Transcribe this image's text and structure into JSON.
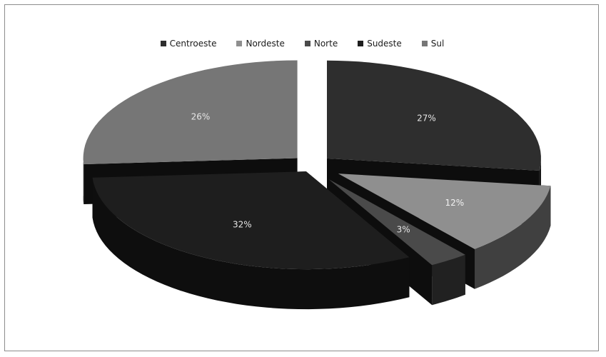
{
  "chart_data": {
    "type": "pie",
    "style": "3d-exploded",
    "legend_position": "top",
    "categories": [
      "Centroeste",
      "Nordeste",
      "Norte",
      "Sudeste",
      "Sul"
    ],
    "values": [
      27,
      12,
      3,
      32,
      26
    ],
    "labels": [
      "27%",
      "12%",
      "3%",
      "32%",
      "26%"
    ],
    "colors": {
      "Centroeste": "#2e2e2e",
      "Nordeste": "#8f8f8f",
      "Norte": "#4a4a4a",
      "Sudeste": "#1e1e1e",
      "Sul": "#767676"
    }
  }
}
